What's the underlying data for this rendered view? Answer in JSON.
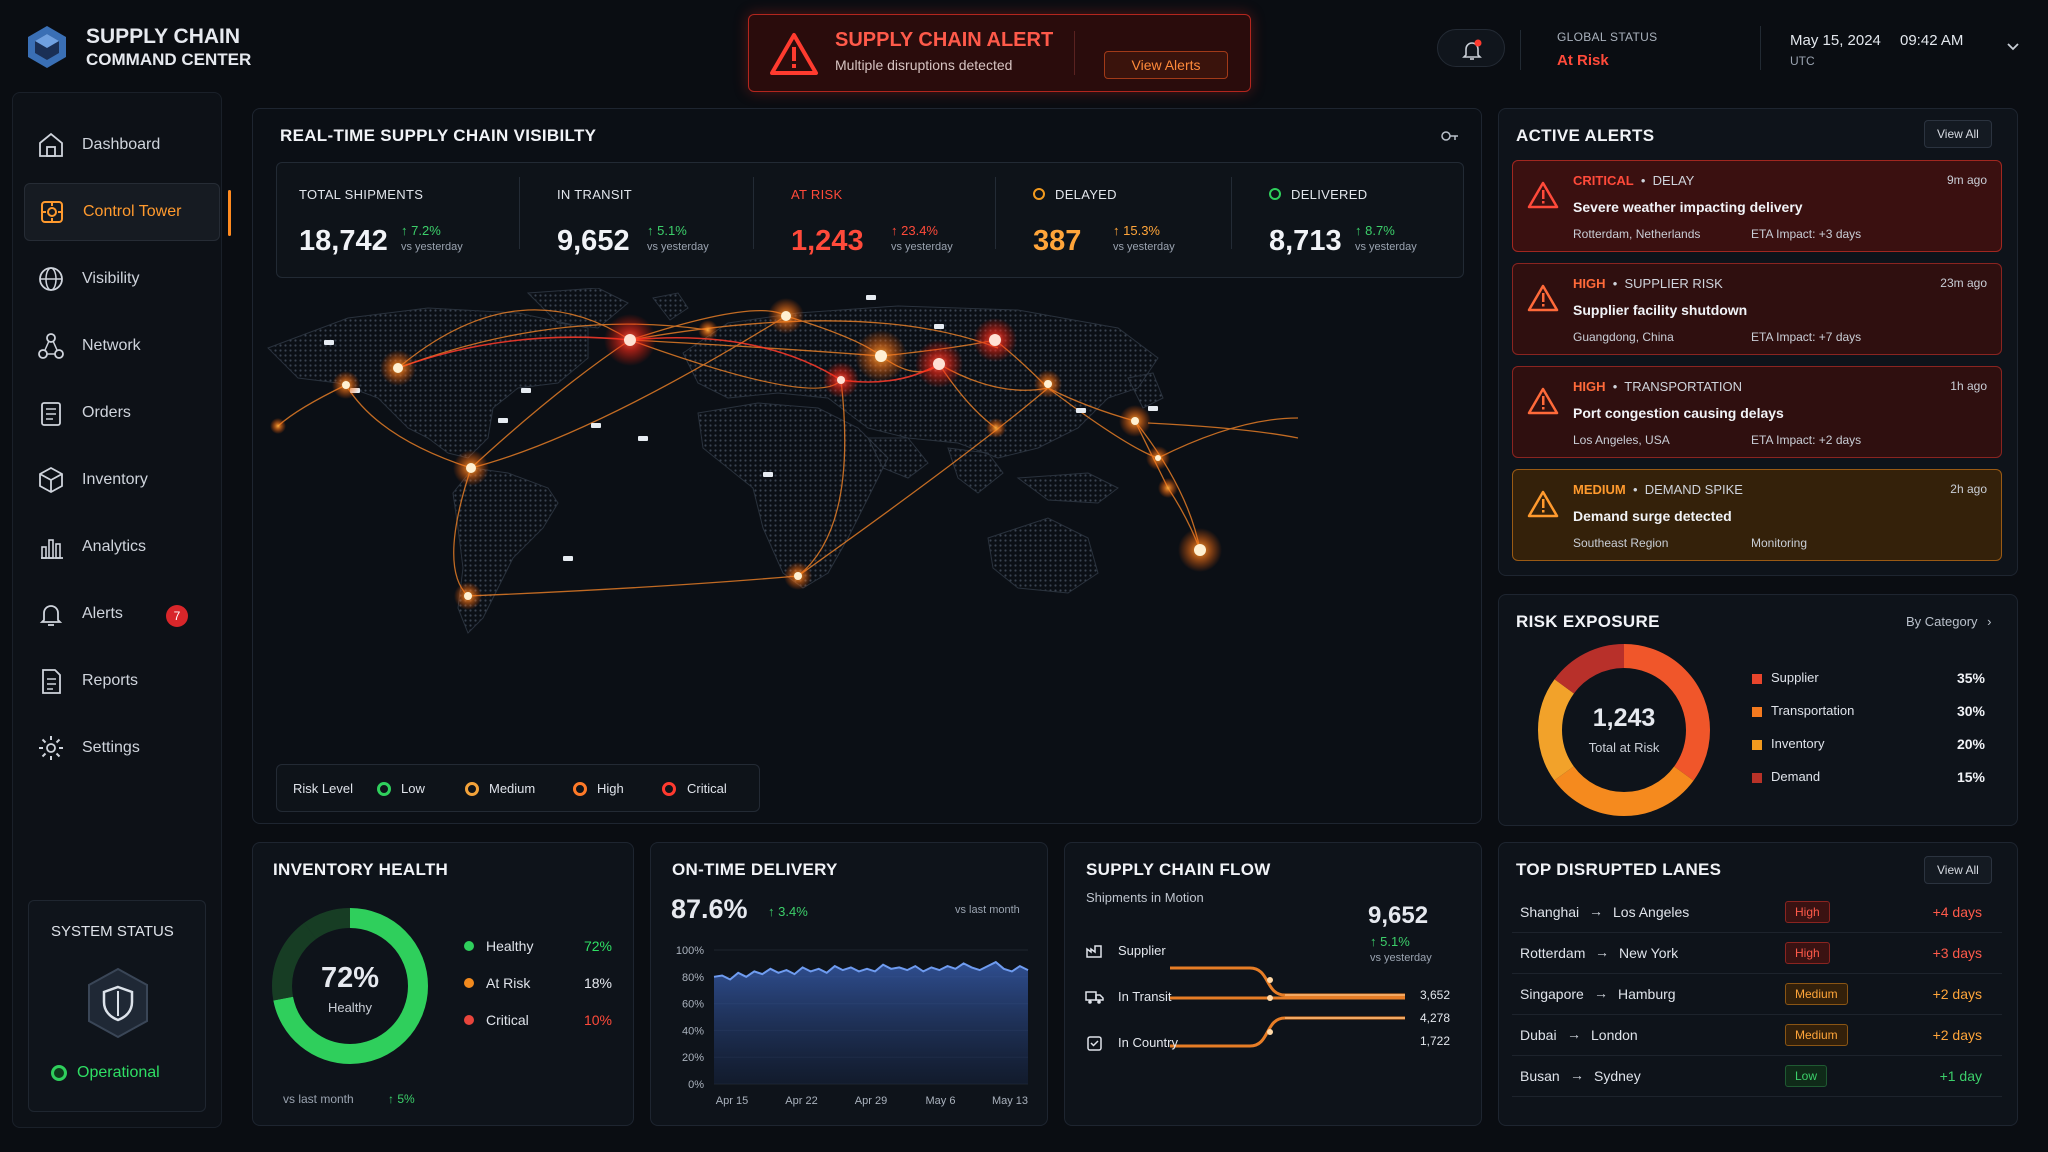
{
  "header": {
    "brand_line1": "SUPPLY CHAIN",
    "brand_line2": "COMMAND CENTER",
    "alert_title": "SUPPLY CHAIN ALERT",
    "alert_sub": "Multiple disruptions detected",
    "alert_button": "View Alerts",
    "status_label": "GLOBAL STATUS",
    "status_value": "At Risk",
    "date": "May 15, 2024",
    "time": "09:42 AM",
    "tz": "UTC"
  },
  "sidebar": {
    "items": [
      {
        "label": "Dashboard",
        "icon": "home-icon"
      },
      {
        "label": "Control Tower",
        "icon": "tower-icon"
      },
      {
        "label": "Visibility",
        "icon": "globe-icon"
      },
      {
        "label": "Network",
        "icon": "network-icon"
      },
      {
        "label": "Orders",
        "icon": "clipboard-icon"
      },
      {
        "label": "Inventory",
        "icon": "box-icon"
      },
      {
        "label": "Analytics",
        "icon": "bar-chart-icon"
      },
      {
        "label": "Alerts",
        "icon": "bell-icon",
        "badge": "7"
      },
      {
        "label": "Reports",
        "icon": "report-icon"
      },
      {
        "label": "Settings",
        "icon": "gear-icon"
      }
    ],
    "system_status_title": "SYSTEM STATUS",
    "system_status_value": "Operational"
  },
  "visibility": {
    "title": "REAL-TIME SUPPLY CHAIN VISIBILTY",
    "kpis": [
      {
        "label": "TOTAL SHIPMENTS",
        "value": "18,742",
        "change": "7.2%",
        "vs": "vs yesterday"
      },
      {
        "label": "IN TRANSIT",
        "value": "9,652",
        "change": "5.1%",
        "vs": "vs yesterday"
      },
      {
        "label": "AT RISK",
        "value": "1,243",
        "change": "23.4%",
        "vs": "vs yesterday"
      },
      {
        "label": "DELAYED",
        "value": "387",
        "change": "15.3%",
        "vs": "vs yesterday"
      },
      {
        "label": "DELIVERED",
        "value": "8,713",
        "change": "8.7%",
        "vs": "vs yesterday"
      }
    ],
    "legend": {
      "title": "Risk Level",
      "low": "Low",
      "medium": "Medium",
      "high": "High",
      "critical": "Critical"
    }
  },
  "active_alerts": {
    "title": "ACTIVE ALERTS",
    "view_all": "View All",
    "items": [
      {
        "severity": "CRITICAL",
        "category": "DELAY",
        "time": "9m ago",
        "headline": "Severe weather impacting delivery",
        "location": "Rotterdam, Netherlands",
        "impact": "ETA Impact: +3 days"
      },
      {
        "severity": "HIGH",
        "category": "SUPPLIER RISK",
        "time": "23m ago",
        "headline": "Supplier facility shutdown",
        "location": "Guangdong, China",
        "impact": "ETA Impact: +7 days"
      },
      {
        "severity": "HIGH",
        "category": "TRANSPORTATION",
        "time": "1h ago",
        "headline": "Port congestion causing delays",
        "location": "Los Angeles, USA",
        "impact": "ETA Impact: +2 days"
      },
      {
        "severity": "MEDIUM",
        "category": "DEMAND SPIKE",
        "time": "2h ago",
        "headline": "Demand surge detected",
        "location": "Southeast Region",
        "impact": "Monitoring"
      }
    ]
  },
  "risk_exposure": {
    "title": "RISK EXPOSURE",
    "filter": "By Category",
    "total": "1,243",
    "total_label": "Total at Risk",
    "items": [
      {
        "label": "Supplier",
        "value": "35%",
        "pct": 35,
        "color": "#e8452c"
      },
      {
        "label": "Transportation",
        "value": "30%",
        "pct": 30,
        "color": "#f47a1f"
      },
      {
        "label": "Inventory",
        "value": "20%",
        "pct": 20,
        "color": "#f29a1e"
      },
      {
        "label": "Demand",
        "value": "15%",
        "pct": 15,
        "color": "#b83228"
      }
    ]
  },
  "inventory_health": {
    "title": "INVENTORY HEALTH",
    "center_value": "72%",
    "center_label": "Healthy",
    "items": [
      {
        "label": "Healthy",
        "value": "72%",
        "pct": 72,
        "color": "#2fcf5c"
      },
      {
        "label": "At Risk",
        "value": "18%",
        "pct": 18,
        "color": "#f28a1e"
      },
      {
        "label": "Critical",
        "value": "10%",
        "pct": 10,
        "color": "#e8453c"
      }
    ],
    "footer_label": "vs last month",
    "footer_change": "5%"
  },
  "on_time_delivery": {
    "title": "ON-TIME DELIVERY",
    "value": "87.6%",
    "change": "3.4%",
    "vs": "vs last month"
  },
  "chart_data": {
    "type": "area",
    "title": "",
    "xlabel": "",
    "ylabel": "",
    "y_ticks": [
      "100%",
      "80%",
      "60%",
      "40%",
      "20%",
      "0%"
    ],
    "x_ticks": [
      "Apr 15",
      "Apr 22",
      "Apr 29",
      "May 6",
      "May 13"
    ],
    "ylim": [
      0,
      100
    ],
    "values": [
      80,
      81,
      78,
      83,
      80,
      84,
      82,
      86,
      83,
      85,
      82,
      87,
      84,
      86,
      83,
      88,
      85,
      87,
      84,
      86,
      84,
      89,
      86,
      87,
      85,
      88,
      84,
      87,
      85,
      88,
      86,
      90,
      87,
      85,
      88,
      91,
      86,
      84,
      88,
      85
    ]
  },
  "supply_chain_flow": {
    "title": "SUPPLY CHAIN FLOW",
    "subtitle": "Shipments in Motion",
    "total": "9,652",
    "change": "5.1%",
    "vs": "vs yesterday",
    "stages": [
      {
        "label": "Supplier",
        "icon": "factory-icon"
      },
      {
        "label": "In Transit",
        "icon": "truck-icon"
      },
      {
        "label": "In Country",
        "icon": "package-icon"
      }
    ],
    "values": [
      "3,652",
      "4,278",
      "1,722"
    ]
  },
  "top_lanes": {
    "title": "TOP DISRUPTED LANES",
    "view_all": "View All",
    "items": [
      {
        "from": "Shanghai",
        "to": "Los Angeles",
        "risk": "High",
        "delay": "+4 days"
      },
      {
        "from": "Rotterdam",
        "to": "New York",
        "risk": "High",
        "delay": "+3 days"
      },
      {
        "from": "Singapore",
        "to": "Hamburg",
        "risk": "Medium",
        "delay": "+2 days"
      },
      {
        "from": "Dubai",
        "to": "London",
        "risk": "Medium",
        "delay": "+2 days"
      },
      {
        "from": "Busan",
        "to": "Sydney",
        "risk": "Low",
        "delay": "+1 day"
      }
    ]
  },
  "colors": {
    "accent": "#ff8a1f",
    "critical": "#e8453c",
    "success": "#2fcf5c",
    "background": "#0a0d12"
  }
}
